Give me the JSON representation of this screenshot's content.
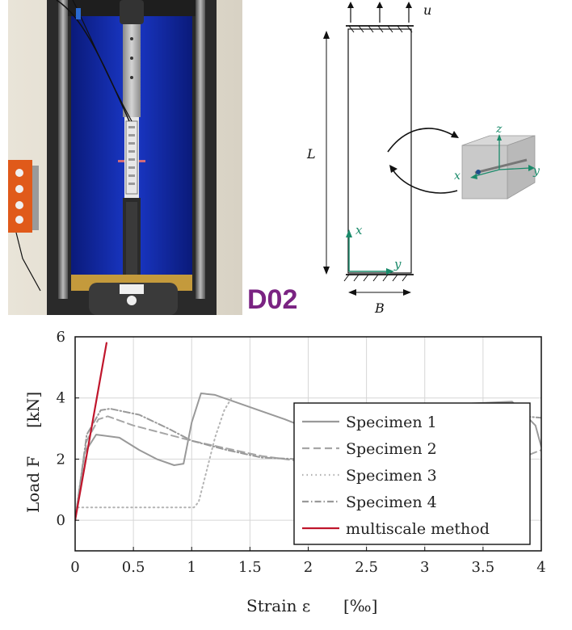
{
  "figure": {
    "photo_label": "D02",
    "photo_label_color": "#7a2382"
  },
  "schematic": {
    "displacement_label": "u",
    "length_label": "L",
    "width_label": "B",
    "axis_x": "x",
    "axis_y": "y",
    "cube_axis_z": "z",
    "cube_axis_x": "x",
    "cube_axis_y": "y",
    "axis_color": "#1a8a6a"
  },
  "chart_data": {
    "type": "line",
    "title": "",
    "xlabel": "Strain ε",
    "xlabel_unit": "[‰]",
    "ylabel": "Load F",
    "ylabel_unit": "[kN]",
    "xlim": [
      0,
      4
    ],
    "ylim": [
      -1,
      6
    ],
    "xticks": [
      0,
      0.5,
      1,
      1.5,
      2,
      2.5,
      3,
      3.5,
      4
    ],
    "xtick_labels": [
      "0",
      "0.5",
      "1",
      "1.5",
      "2",
      "2.5",
      "3",
      "3.5",
      "4"
    ],
    "yticks": [
      0,
      2,
      4,
      6
    ],
    "ytick_labels": [
      "0",
      "2",
      "4",
      "6"
    ],
    "grid": true,
    "legend_position": "right",
    "series": [
      {
        "name": "Specimen 1",
        "color": "#999999",
        "dash": "solid",
        "x": [
          0,
          0.08,
          0.18,
          0.38,
          0.55,
          0.7,
          0.85,
          0.93,
          1.0,
          1.08,
          1.2,
          1.5,
          1.8,
          2.0
        ],
        "y": [
          0,
          2.2,
          2.8,
          2.7,
          2.3,
          2.0,
          1.8,
          1.85,
          3.2,
          4.15,
          4.1,
          3.7,
          3.3,
          3.0
        ]
      },
      {
        "name": "Specimen 2",
        "color": "#a6a6a6",
        "dash": "dashed",
        "x": [
          0,
          0.1,
          0.2,
          0.28,
          0.5,
          0.8,
          1.0,
          1.3,
          1.6,
          1.9,
          2.0
        ],
        "y": [
          0,
          2.6,
          3.3,
          3.4,
          3.1,
          2.8,
          2.6,
          2.35,
          2.1,
          1.95,
          1.9
        ]
      },
      {
        "name": "Specimen 3",
        "color": "#b3b3b3",
        "dash": "dotted",
        "x": [
          0,
          0.02,
          1.02,
          1.06,
          1.12,
          1.2,
          1.28,
          1.35
        ],
        "y": [
          0,
          0.42,
          0.42,
          0.6,
          1.5,
          2.7,
          3.6,
          4.05
        ]
      },
      {
        "name": "Specimen 4",
        "color": "#999999",
        "dash": "dashdot",
        "x": [
          0,
          0.1,
          0.22,
          0.3,
          0.55,
          0.8,
          1.0,
          1.3,
          1.6,
          1.9,
          2.0
        ],
        "y": [
          0,
          2.8,
          3.6,
          3.65,
          3.45,
          3.0,
          2.6,
          2.3,
          2.05,
          2.0,
          2.0
        ]
      },
      {
        "name": "multiscale method",
        "color": "#c0162c",
        "dash": "solid",
        "x": [
          0,
          0.27
        ],
        "y": [
          0,
          5.8
        ]
      }
    ],
    "right_edge_fragments": [
      {
        "color": "#999999",
        "dash": "solid",
        "x": [
          3.4,
          3.75,
          3.95,
          4.0
        ],
        "y": [
          3.82,
          3.88,
          3.1,
          2.4
        ]
      },
      {
        "color": "#999999",
        "dash": "dashdot",
        "x": [
          3.85,
          4.0
        ],
        "y": [
          3.4,
          3.35
        ]
      },
      {
        "color": "#a6a6a6",
        "dash": "dashed",
        "x": [
          3.9,
          4.0
        ],
        "y": [
          2.15,
          2.3
        ]
      }
    ]
  }
}
